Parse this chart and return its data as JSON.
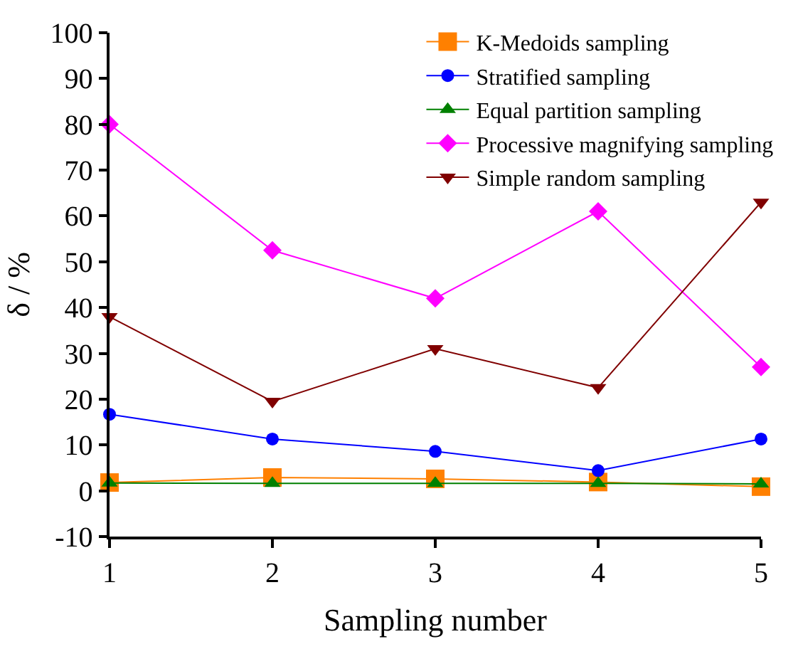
{
  "chart_data": {
    "type": "line",
    "xlabel": "Sampling number",
    "ylabel": "δ / %",
    "x": [
      1,
      2,
      3,
      4,
      5
    ],
    "xlim": [
      1,
      5
    ],
    "xticks": [
      1,
      2,
      3,
      4,
      5
    ],
    "ylim": [
      -10,
      100
    ],
    "yticks": [
      -10,
      0,
      10,
      20,
      30,
      40,
      50,
      60,
      70,
      80,
      90,
      100
    ],
    "legend": "top right",
    "series": [
      {
        "name": "K-Medoids sampling",
        "color": "#ff8000",
        "marker": "square",
        "values": [
          1.8,
          2.9,
          2.6,
          1.9,
          0.9
        ]
      },
      {
        "name": "Stratified sampling",
        "color": "#0000ff",
        "marker": "circle",
        "values": [
          16.7,
          11.3,
          8.6,
          4.4,
          11.3
        ]
      },
      {
        "name": "Equal partition sampling",
        "color": "#008000",
        "marker": "triangle",
        "values": [
          1.7,
          1.6,
          1.6,
          1.6,
          1.5
        ]
      },
      {
        "name": "Processive magnifying sampling",
        "color": "#ff00ff",
        "marker": "diamond",
        "values": [
          80,
          52.5,
          42,
          61,
          27
        ]
      },
      {
        "name": "Simple random sampling",
        "color": "#800000",
        "marker": "triangle-down",
        "values": [
          38,
          19.5,
          31,
          22.5,
          63
        ]
      }
    ]
  }
}
